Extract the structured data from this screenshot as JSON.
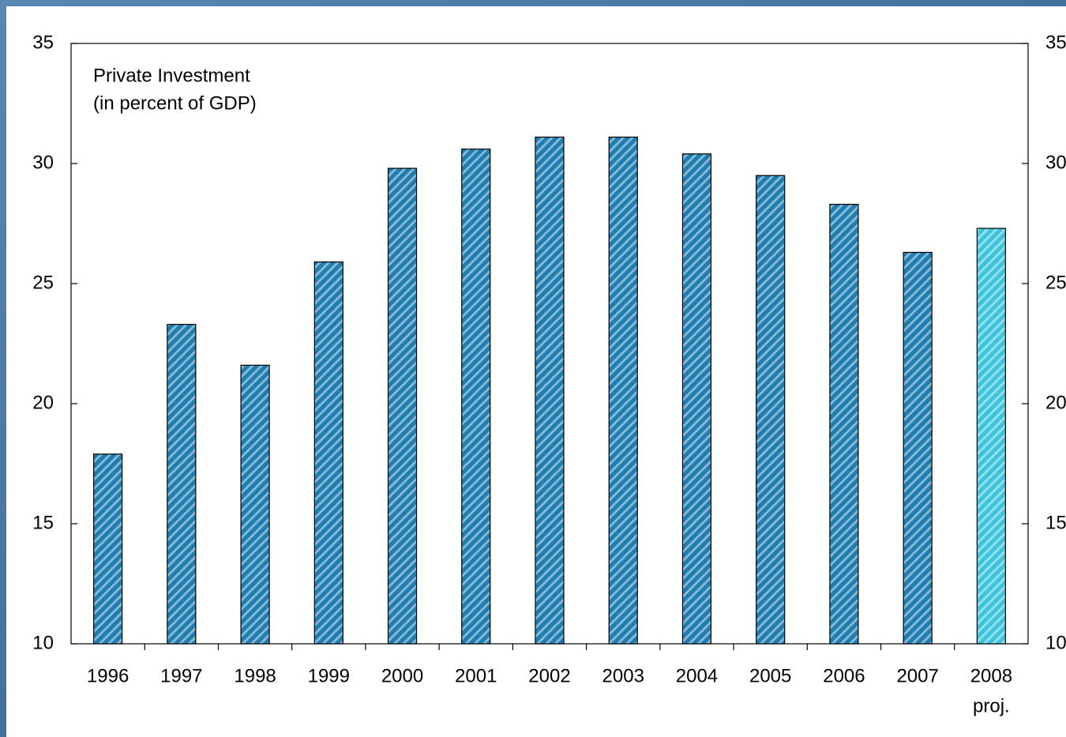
{
  "chart_data": {
    "type": "bar",
    "title": "Private Investment",
    "subtitle": "(in percent of GDP)",
    "categories": [
      "1996",
      "1997",
      "1998",
      "1999",
      "2000",
      "2001",
      "2002",
      "2003",
      "2004",
      "2005",
      "2006",
      "2007",
      "2008"
    ],
    "values": [
      17.9,
      23.3,
      21.6,
      25.9,
      29.8,
      30.6,
      31.1,
      31.1,
      30.4,
      29.5,
      28.3,
      26.3,
      27.3
    ],
    "colors": [
      "#1f7db0",
      "#1f7db0",
      "#1f7db0",
      "#1f7db0",
      "#1f7db0",
      "#1f7db0",
      "#1f7db0",
      "#1f7db0",
      "#1f7db0",
      "#1f7db0",
      "#1f7db0",
      "#1f7db0",
      "#3cc4dc"
    ],
    "annotations": [
      {
        "text": "proj.",
        "category": "2008"
      }
    ],
    "ylim": [
      10,
      35
    ],
    "yticks": [
      10,
      15,
      20,
      25,
      30,
      35
    ],
    "y2lim": [
      10,
      35
    ],
    "y2ticks": [
      10,
      15,
      20,
      25,
      30,
      35
    ],
    "grid": false
  }
}
